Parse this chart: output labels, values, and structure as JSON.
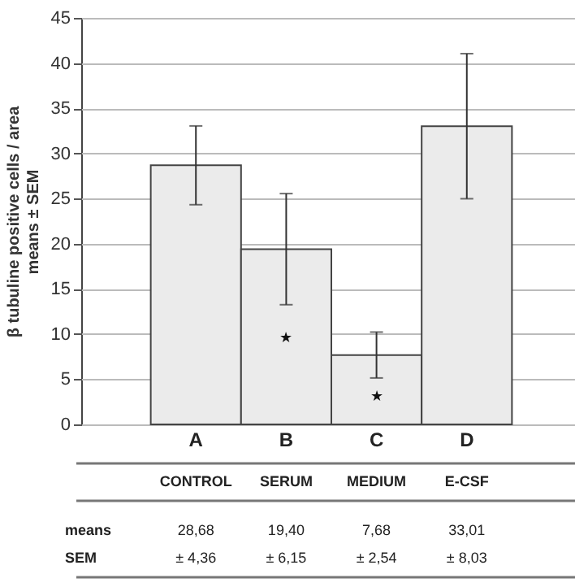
{
  "chart_data": {
    "type": "bar",
    "ylabel": "β tubuline positive cells / area\nmeans ± SEM",
    "categories": [
      "A",
      "B",
      "C",
      "D"
    ],
    "series": [
      {
        "color": "#ebebeb",
        "values": [
          28.68,
          19.4,
          7.68,
          33.01
        ],
        "errors": [
          4.36,
          6.15,
          2.54,
          8.03
        ]
      }
    ],
    "ylim": [
      0,
      45
    ],
    "yticks": [
      0,
      5,
      10,
      15,
      20,
      25,
      30,
      35,
      40,
      45
    ],
    "grid": "y",
    "annotations": [
      "★",
      "★",
      "CONTROL",
      "SERUM",
      "MEDIUM",
      "E-CSF",
      "means",
      "SEM",
      "28,68",
      "19,40",
      "7,68",
      "33,01",
      "± 4,36",
      "± 6,15",
      "± 2,54",
      "± 8,03"
    ]
  }
}
